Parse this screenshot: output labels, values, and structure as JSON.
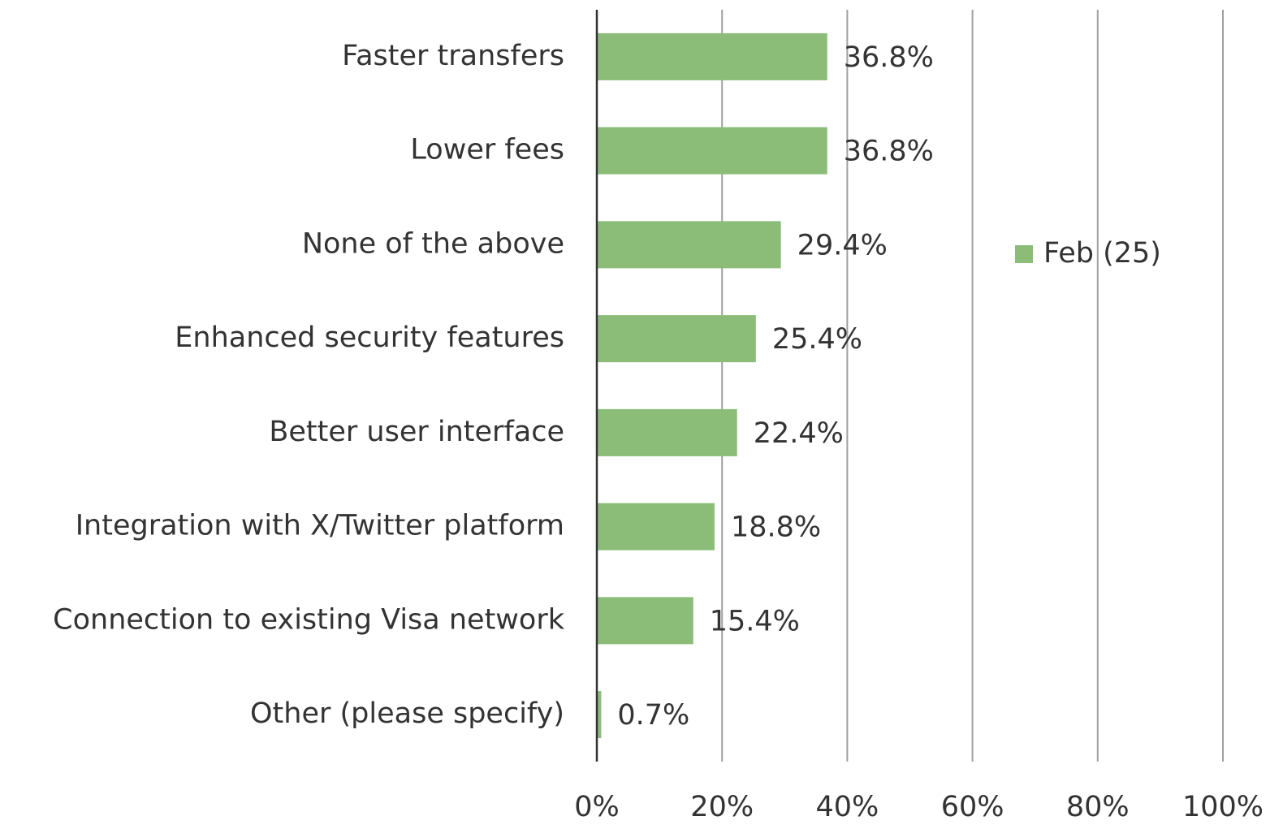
{
  "chart_data": {
    "type": "hbar",
    "categories": [
      "Faster transfers",
      "Lower fees",
      "None of the above",
      "Enhanced security features",
      "Better user interface",
      "Integration with X/Twitter platform",
      "Connection to existing Visa network",
      "Other (please specify)"
    ],
    "series": [
      {
        "name": "Feb (25)",
        "color": "#8bbd78",
        "values": [
          36.8,
          36.8,
          29.4,
          25.4,
          22.4,
          18.8,
          15.4,
          0.7
        ],
        "value_labels": [
          "36.8%",
          "36.8%",
          "29.4%",
          "25.4%",
          "22.4%",
          "18.8%",
          "15.4%",
          "0.7%"
        ]
      }
    ],
    "xlim": [
      0,
      100
    ],
    "xticks": [
      {
        "value": 0,
        "label": "0%"
      },
      {
        "value": 20,
        "label": "20%"
      },
      {
        "value": 40,
        "label": "40%"
      },
      {
        "value": 60,
        "label": "60%"
      },
      {
        "value": 80,
        "label": "80%"
      },
      {
        "value": 100,
        "label": "100%"
      }
    ],
    "grid": true,
    "legend": "right"
  }
}
